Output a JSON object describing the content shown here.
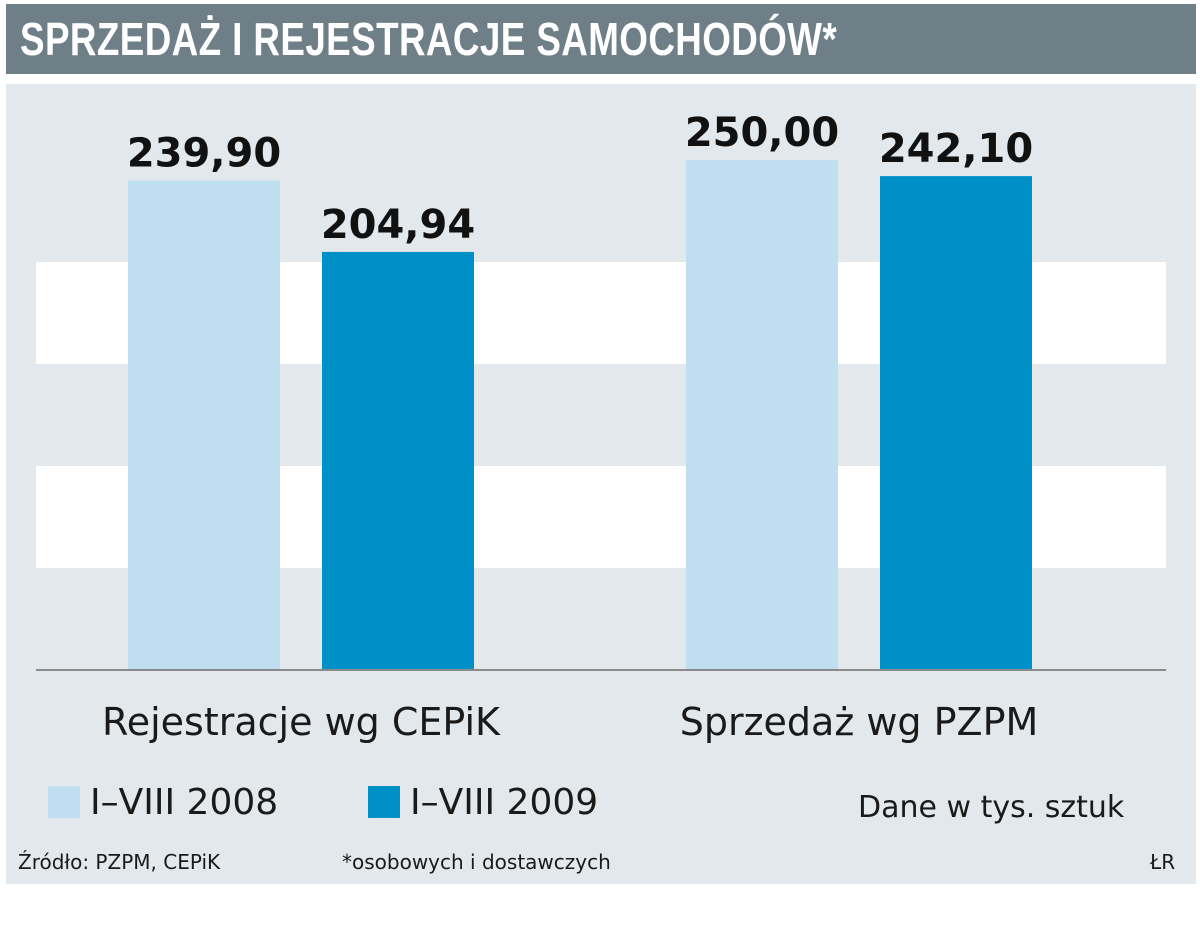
{
  "title": "SPRZEDAŻ I REJESTRACJE SAMOCHODÓW*",
  "chart_data": {
    "type": "bar",
    "categories": [
      "Rejestracje wg CEPiK",
      "Sprzedaż wg PZPM"
    ],
    "series": [
      {
        "name": "I–VIII 2008",
        "values": [
          239.9,
          250.0
        ],
        "labels": [
          "239,90",
          "250,00"
        ],
        "color": "#bfdff0"
      },
      {
        "name": "I–VIII 2009",
        "values": [
          204.94,
          242.1
        ],
        "labels": [
          "204,94",
          "242,10"
        ],
        "color": "#0090c8"
      }
    ],
    "ylim": [
      0,
      250
    ],
    "grid": true,
    "legend_position": "bottom-left",
    "unit_note": "Dane w tys. sztuk"
  },
  "footer": {
    "source": "Źródło: PZPM, CEPiK",
    "note": "*osobowych i dostawczych",
    "credit": "ŁR"
  },
  "colors": {
    "title_background": "#6f7f88",
    "panel_background": "#e3e8ec",
    "grid_band": "#ffffff"
  }
}
